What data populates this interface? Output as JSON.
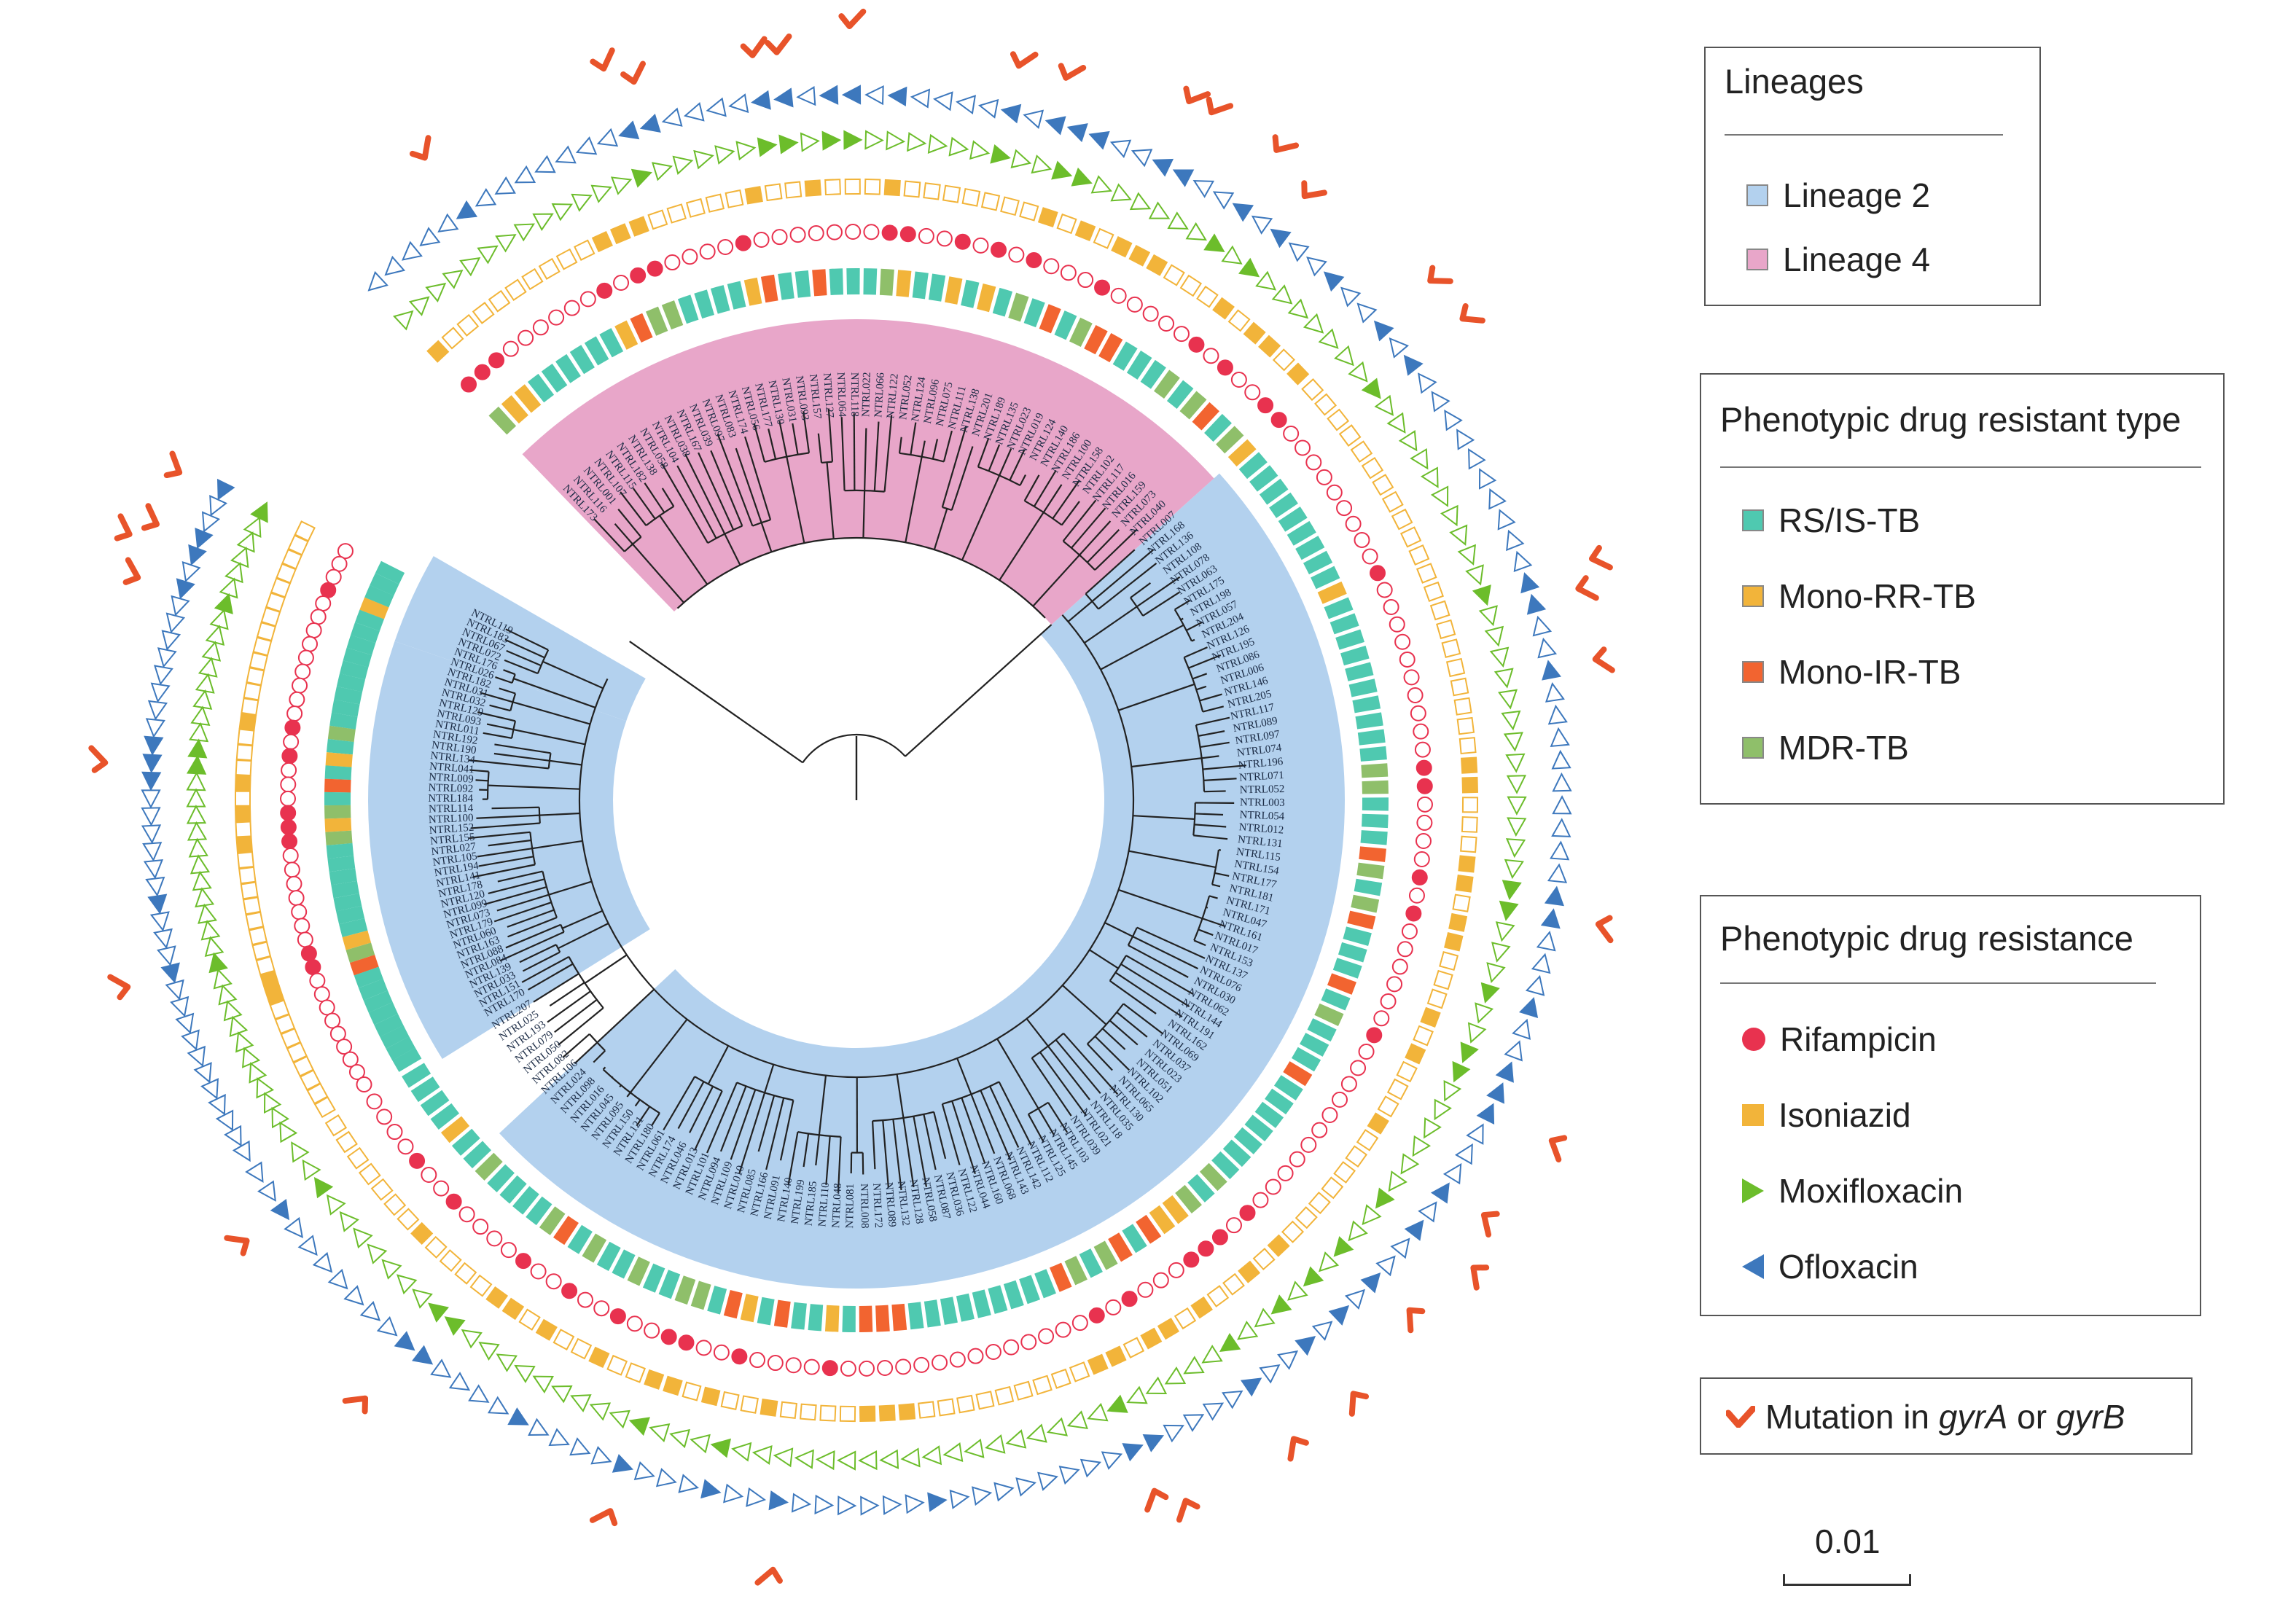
{
  "legends": {
    "lineages": {
      "title": "Lineages",
      "items": [
        {
          "label": "Lineage 2",
          "color": "#b3d1ee"
        },
        {
          "label": "Lineage 4",
          "color": "#e8a6c9"
        }
      ]
    },
    "resistant_type": {
      "title": "Phenotypic drug resistant type",
      "items": [
        {
          "label": "RS/IS-TB",
          "color": "#4fc9b0"
        },
        {
          "label": "Mono-RR-TB",
          "color": "#f2b43a"
        },
        {
          "label": "Mono-IR-TB",
          "color": "#f26430"
        },
        {
          "label": "MDR-TB",
          "color": "#8fbf6a"
        }
      ]
    },
    "resistance": {
      "title": "Phenotypic drug resistance",
      "items": [
        {
          "label": "Rifampicin",
          "color": "#e8324f",
          "icon": "circle-icon"
        },
        {
          "label": "Isoniazid",
          "color": "#f2b43a",
          "icon": "square-icon"
        },
        {
          "label": "Moxifloxacin",
          "color": "#6cbd2b",
          "icon": "triangle-right-icon"
        },
        {
          "label": "Ofloxacin",
          "color": "#3d78bd",
          "icon": "triangle-left-icon"
        }
      ]
    },
    "mutation": {
      "text_before": "Mutation in ",
      "gene_a": "gyrA",
      "text_mid": " or ",
      "gene_b": "gyrB",
      "color": "#e8532a",
      "icon": "check-icon"
    }
  },
  "scale_bar": {
    "label": "0.01"
  },
  "tip_labels": [
    "NTRL119",
    "NTRL183",
    "NTRL067",
    "NTRL072",
    "NTRL176",
    "NTRL026",
    "NTRL182",
    "NTRL031",
    "NTRL032",
    "NTRL129",
    "NTRL093",
    "NTRL011",
    "NTRL192",
    "NTRL190",
    "NTRL134",
    "NTRL041",
    "NTRL009",
    "NTRL092",
    "NTRL184",
    "NTRL114",
    "NTRL100",
    "NTRL152",
    "NTRL155",
    "NTRL027",
    "NTRL105",
    "NTRL194",
    "NTRL141",
    "NTRL178",
    "NTRL120",
    "NTRL099",
    "NTRL073",
    "NTRL179",
    "NTRL060",
    "NTRL163",
    "NTRL088",
    "NTRL084",
    "NTRL139",
    "NTRL033",
    "NTRL151",
    "NTRL170",
    "NTRL207",
    "NTRL025",
    "NTRL193",
    "NTRL079",
    "NTRL050",
    "NTRL082",
    "NTRL106",
    "NTRL024",
    "NTRL098",
    "NTRL016",
    "NTRL045",
    "NTRL095",
    "NTRL150",
    "NTRL121",
    "NTRL180",
    "NTRL061",
    "NTRL174",
    "NTRL046",
    "NTRL013",
    "NTRL101",
    "NTRL094",
    "NTRL109",
    "NTRL010",
    "NTRL085",
    "NTRL166",
    "NTRL091",
    "NTRL140",
    "NTRL199",
    "NTRL185",
    "NTRL110",
    "NTRL048",
    "NTRL081",
    "NTRL008",
    "NTRL172",
    "NTRL089",
    "NTRL132",
    "NTRL128",
    "NTRL058",
    "NTRL087",
    "NTRL036",
    "NTRL122",
    "NTRL044",
    "NTRL160",
    "NTRL068",
    "NTRL143",
    "NTRL142",
    "NTRL112",
    "NTRL125",
    "NTRL145",
    "NTRL103",
    "NTRL039",
    "NTRL021",
    "NTRL118",
    "NTRL035",
    "NTRL130",
    "NTRL065",
    "NTRL102",
    "NTRL051",
    "NTRL023",
    "NTRL037",
    "NTRL069",
    "NTRL162",
    "NTRL191",
    "NTRL144",
    "NTRL062",
    "NTRL030",
    "NTRL076",
    "NTRL137",
    "NTRL153",
    "NTRL017",
    "NTRL161",
    "NTRL047",
    "NTRL171",
    "NTRL181",
    "NTRL177",
    "NTRL154",
    "NTRL115",
    "NTRL131",
    "NTRL012",
    "NTRL054",
    "NTRL003",
    "NTRL052",
    "NTRL071",
    "NTRL196",
    "NTRL074",
    "NTRL097",
    "NTRL089",
    "NTRL117",
    "NTRL205",
    "NTRL146",
    "NTRL006",
    "NTRL086",
    "NTRL195",
    "NTRL126",
    "NTRL204",
    "NTRL057",
    "NTRL198",
    "NTRL175",
    "NTRL063",
    "NTRL078",
    "NTRL108",
    "NTRL136",
    "NTRL168",
    "NTRL007",
    "NTRL173",
    "NTRL116",
    "NTRL001",
    "NTRL107",
    "NTRL115",
    "NTRL182",
    "NTRL138",
    "NTRL058",
    "NTRL104",
    "NTRL038",
    "NTRL167",
    "NTRL039",
    "NTRL097",
    "NTRL083",
    "NTRL174",
    "NTRL056",
    "NTRL177",
    "NTRL130",
    "NTRL031",
    "NTRL093",
    "NTRL157",
    "NTRL127",
    "NTRL064",
    "NTRL118",
    "NTRL022",
    "NTRL066",
    "NTRL122",
    "NTRL052",
    "NTRL124",
    "NTRL096",
    "NTRL075",
    "NTRL111",
    "NTRL138",
    "NTRL201",
    "NTRL189",
    "NTRL135",
    "NTRL023",
    "NTRL019",
    "NTRL124",
    "NTRL140",
    "NTRL186",
    "NTRL100",
    "NTRL158",
    "NTRL102",
    "NTRL117",
    "NTRL016",
    "NTRL159",
    "NTRL073",
    "NTRL040"
  ]
}
